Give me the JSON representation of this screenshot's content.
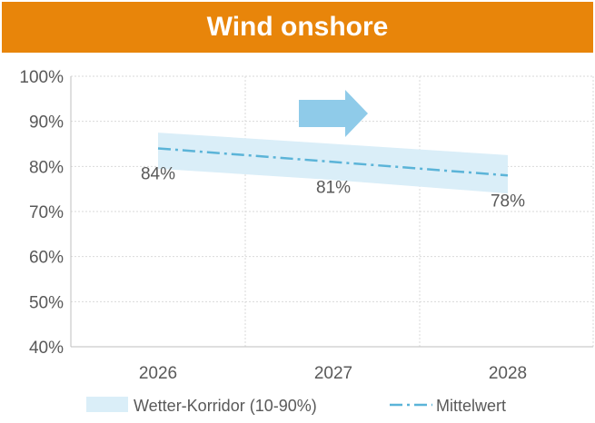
{
  "colors": {
    "title_bg": "#E8850A",
    "band": "#DAEEF8",
    "mean_line": "#5BB4D8",
    "arrow": "#8FCBE9"
  },
  "chart_data": {
    "type": "area",
    "title": "Wind onshore",
    "x": [
      "2026",
      "2027",
      "2028"
    ],
    "band": {
      "name": "Wetter-Korridor (10-90%)",
      "lower": [
        79.5,
        77.0,
        74.0
      ],
      "upper": [
        87.5,
        85.0,
        82.5
      ]
    },
    "series": [
      {
        "name": "Mittelwert",
        "values": [
          84,
          81,
          78
        ],
        "labels": [
          "84%",
          "81%",
          "78%"
        ]
      }
    ],
    "ylim": [
      40,
      100
    ],
    "yticks": [
      100,
      90,
      80,
      70,
      60,
      50,
      40
    ],
    "ytick_labels": [
      "100%",
      "90%",
      "80%",
      "70%",
      "60%",
      "50%",
      "40%"
    ],
    "grid": true,
    "legend_position": "bottom",
    "trend_arrow": "right"
  }
}
